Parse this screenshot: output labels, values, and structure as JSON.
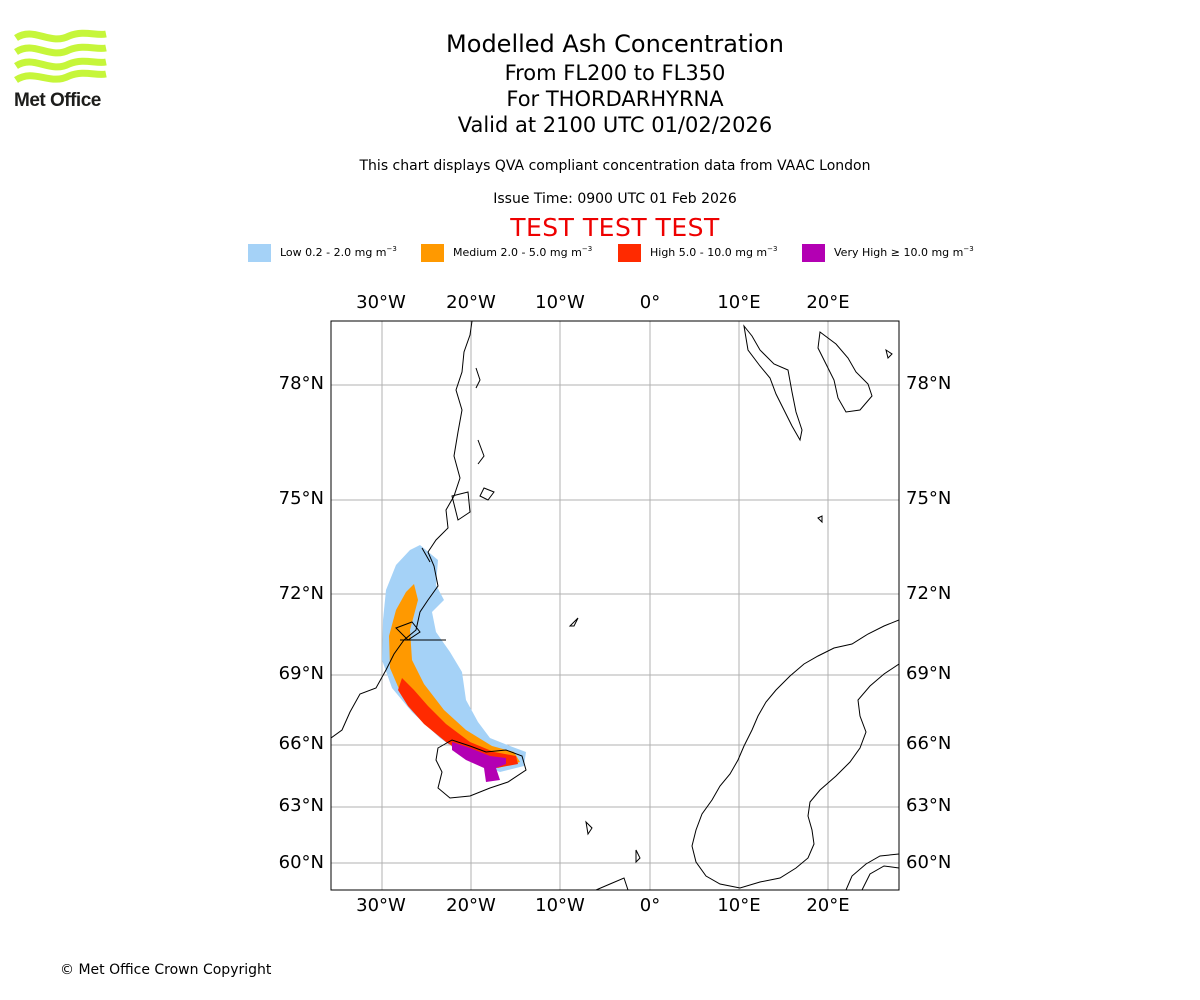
{
  "header": {
    "title": "Modelled Ash Concentration",
    "levels": "From FL200 to FL350",
    "volcano": "For THORDARHYRNA",
    "valid": "Valid at 2100 UTC 01/02/2026"
  },
  "subtitle": "This chart displays QVA compliant concentration data from VAAC London",
  "issue_time": "Issue Time: 0900 UTC 01 Feb 2026",
  "test_banner": "TEST TEST TEST",
  "logo": {
    "text": "Met Office",
    "color": "#c6f63a"
  },
  "legend": [
    {
      "label": "Low 0.2 - 2.0 mg m",
      "unit_exp": "−3",
      "color": "#a5d2f7"
    },
    {
      "label": "Medium 2.0 - 5.0 mg m",
      "unit_exp": "−3",
      "color": "#ff9900"
    },
    {
      "label": "High 5.0 - 10.0 mg m",
      "unit_exp": "−3",
      "color": "#ff2a00"
    },
    {
      "label": "Very High  ≥  10.0 mg m",
      "unit_exp": "−3",
      "color": "#b300b3"
    }
  ],
  "axes": {
    "longitude_labels": [
      "30°W",
      "20°W",
      "10°W",
      "0°",
      "10°E",
      "20°E"
    ],
    "latitude_labels": [
      "78°N",
      "75°N",
      "72°N",
      "69°N",
      "66°N",
      "63°N",
      "60°N"
    ]
  },
  "footer": {
    "copyright": "© Met Office Crown Copyright"
  }
}
